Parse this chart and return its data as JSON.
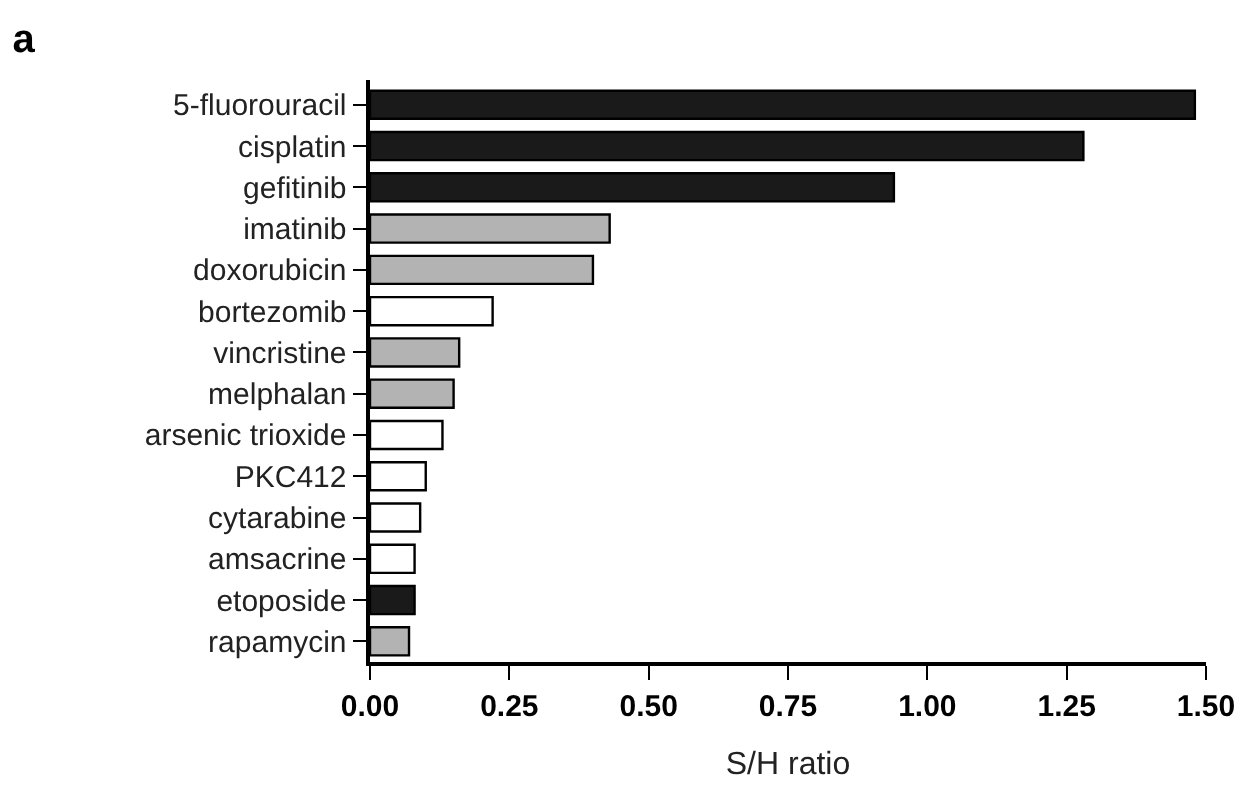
{
  "chart_data": {
    "type": "bar",
    "orientation": "horizontal",
    "title": "a",
    "xlabel": "S/H ratio",
    "categories": [
      "5-fluorouracil",
      "cisplatin",
      "gefitinib",
      "imatinib",
      "doxorubicin",
      "bortezomib",
      "vincristine",
      "melphalan",
      "arsenic trioxide",
      "PKC412",
      "cytarabine",
      "amsacrine",
      "etoposide",
      "rapamycin"
    ],
    "values": [
      1.48,
      1.28,
      0.94,
      0.43,
      0.4,
      0.22,
      0.16,
      0.15,
      0.13,
      0.1,
      0.09,
      0.08,
      0.08,
      0.07
    ],
    "colors": [
      "#1a1a1a",
      "#1a1a1a",
      "#1a1a1a",
      "#b3b3b3",
      "#b3b3b3",
      "#ffffff",
      "#b3b3b3",
      "#b3b3b3",
      "#ffffff",
      "#ffffff",
      "#ffffff",
      "#ffffff",
      "#1a1a1a",
      "#b3b3b3"
    ],
    "xlim": [
      0,
      1.5
    ],
    "xticks": [
      {
        "value": 0,
        "label": "0.00"
      },
      {
        "value": 0.25,
        "label": "0.25"
      },
      {
        "value": 0.5,
        "label": "0.50"
      },
      {
        "value": 0.75,
        "label": "0.75"
      },
      {
        "value": 1,
        "label": "1.00"
      },
      {
        "value": 1.25,
        "label": "1.25"
      },
      {
        "value": 1.5,
        "label": "1.50"
      }
    ]
  }
}
